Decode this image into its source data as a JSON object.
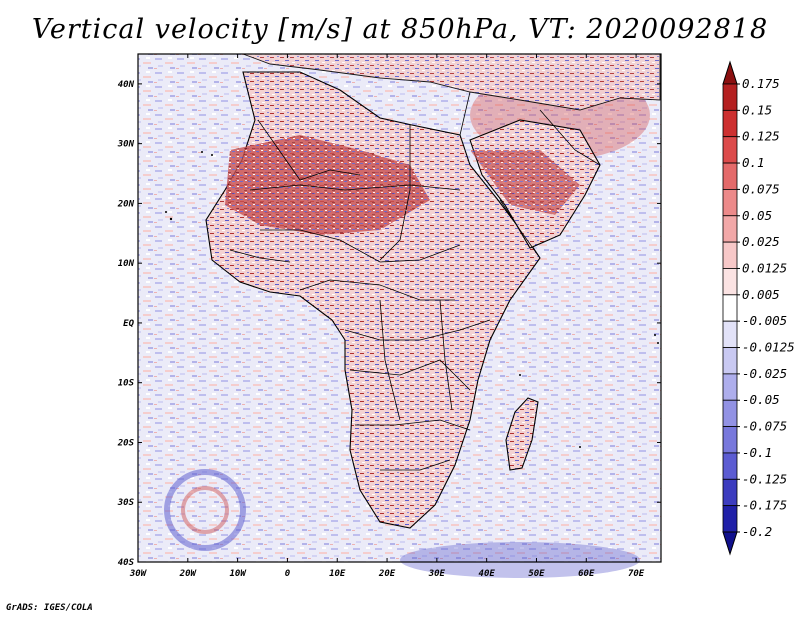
{
  "title": "Vertical velocity [m/s] at 850hPa, VT: 2020092818",
  "footer": "GrADS: IGES/COLA",
  "map": {
    "lon_ticks": [
      "30W",
      "20W",
      "10W",
      "0",
      "10E",
      "20E",
      "30E",
      "40E",
      "50E",
      "60E",
      "70E"
    ],
    "lat_ticks": [
      "40N",
      "30N",
      "20N",
      "10N",
      "EQ",
      "10S",
      "20S",
      "30S",
      "40S"
    ],
    "lon_range": [
      -30,
      75
    ],
    "lat_range": [
      -40,
      45
    ]
  },
  "colorbar": {
    "levels": [
      "0.175",
      "0.15",
      "0.125",
      "0.1",
      "0.075",
      "0.05",
      "0.025",
      "0.0125",
      "0.005",
      "-0.005",
      "-0.0125",
      "-0.025",
      "-0.05",
      "-0.075",
      "-0.1",
      "-0.125",
      "-0.175",
      "-0.2"
    ],
    "colors": [
      "#8b1010",
      "#b42020",
      "#cd3030",
      "#dc4b4b",
      "#e46a6a",
      "#ec8a8a",
      "#f2a8a8",
      "#f7c8c8",
      "#fbe3e3",
      "#ffffff",
      "#e2e2f8",
      "#c9c9f2",
      "#aeaeec",
      "#9292e4",
      "#7878dc",
      "#5c5cd2",
      "#3c3cbf",
      "#2020a8",
      "#10108c"
    ]
  }
}
